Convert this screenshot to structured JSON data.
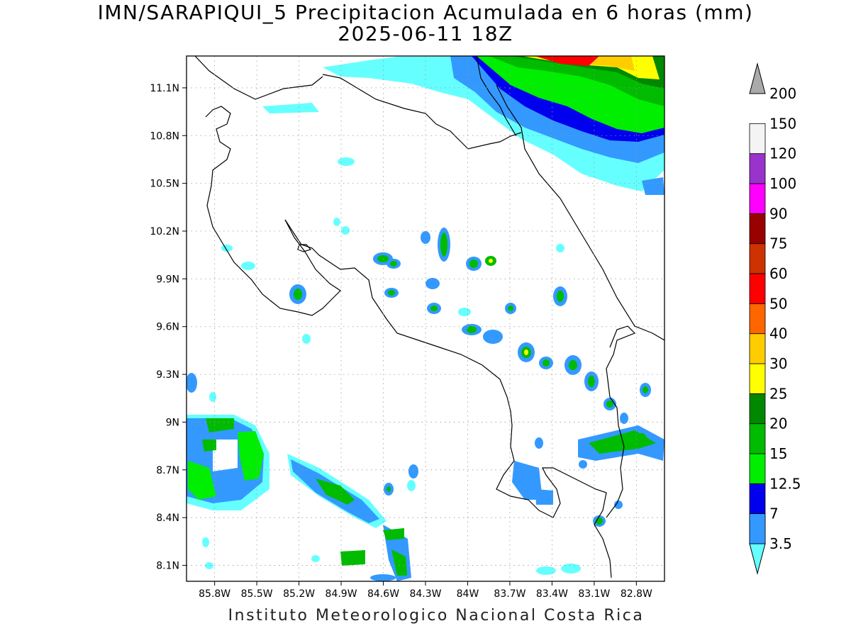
{
  "title_line1": "IMN/SARAPIQUI_5 Precipitacion Acumulada en 6 horas (mm)",
  "title_line2": "2025-06-11 18Z",
  "footer": "Instituto Meteorologico Nacional Costa Rica",
  "map": {
    "lon_range": [
      -86.0,
      -82.6
    ],
    "lat_range": [
      8.0,
      11.3
    ],
    "lat_ticks": [
      {
        "value": 8.1,
        "label": "8.1N"
      },
      {
        "value": 8.4,
        "label": "8.4N"
      },
      {
        "value": 8.7,
        "label": "8.7N"
      },
      {
        "value": 9.0,
        "label": "9N"
      },
      {
        "value": 9.3,
        "label": "9.3N"
      },
      {
        "value": 9.6,
        "label": "9.6N"
      },
      {
        "value": 9.9,
        "label": "9.9N"
      },
      {
        "value": 10.2,
        "label": "10.2N"
      },
      {
        "value": 10.5,
        "label": "10.5N"
      },
      {
        "value": 10.8,
        "label": "10.8N"
      },
      {
        "value": 11.1,
        "label": "11.1N"
      }
    ],
    "lon_ticks": [
      {
        "value": -85.8,
        "label": "85.8W"
      },
      {
        "value": -85.5,
        "label": "85.5W"
      },
      {
        "value": -85.2,
        "label": "85.2W"
      },
      {
        "value": -84.9,
        "label": "84.9W"
      },
      {
        "value": -84.6,
        "label": "84.6W"
      },
      {
        "value": -84.3,
        "label": "84.3W"
      },
      {
        "value": -84.0,
        "label": "84W"
      },
      {
        "value": -83.7,
        "label": "83.7W"
      },
      {
        "value": -83.4,
        "label": "83.4W"
      },
      {
        "value": -83.1,
        "label": "83.1W"
      },
      {
        "value": -82.8,
        "label": "82.8W"
      }
    ],
    "gridlines": true
  },
  "legend": {
    "units": "mm",
    "bins": [
      {
        "label": "3.5",
        "color": "#66ffff"
      },
      {
        "label": "7",
        "color": "#3399ff"
      },
      {
        "label": "12.5",
        "color": "#0000ee"
      },
      {
        "label": "15",
        "color": "#00ee00"
      },
      {
        "label": "20",
        "color": "#00bb00"
      },
      {
        "label": "25",
        "color": "#008800"
      },
      {
        "label": "30",
        "color": "#ffff00"
      },
      {
        "label": "40",
        "color": "#ffcc00"
      },
      {
        "label": "50",
        "color": "#ff6600"
      },
      {
        "label": "60",
        "color": "#ff0000"
      },
      {
        "label": "75",
        "color": "#cc3300"
      },
      {
        "label": "90",
        "color": "#990000"
      },
      {
        "label": "100",
        "color": "#ff00ff"
      },
      {
        "label": "120",
        "color": "#9933cc"
      },
      {
        "label": "150",
        "color": "#f4f4f4"
      },
      {
        "label": "200",
        "color": "#aaaaaa"
      }
    ]
  },
  "precip_cells": [
    {
      "lon": -84.55,
      "lat": 8.13,
      "level": 5
    },
    {
      "lon": -84.85,
      "lat": 8.14,
      "level": 4
    },
    {
      "lon": -85.55,
      "lat": 8.86,
      "level": 8
    },
    {
      "lon": -85.9,
      "lat": 8.63,
      "level": 7
    },
    {
      "lon": -84.88,
      "lat": 8.57,
      "level": 7
    },
    {
      "lon": -84.6,
      "lat": 8.41,
      "level": 7
    },
    {
      "lon": -84.5,
      "lat": 8.33,
      "level": 4
    },
    {
      "lon": -85.15,
      "lat": 8.72,
      "level": 4
    },
    {
      "lon": -83.5,
      "lat": 8.62,
      "level": 6
    },
    {
      "lon": -83.4,
      "lat": 8.5,
      "level": 4
    },
    {
      "lon": -83.49,
      "lat": 9.43,
      "level": 6
    },
    {
      "lon": -83.4,
      "lat": 9.38,
      "level": 4
    },
    {
      "lon": -83.15,
      "lat": 9.33,
      "level": 4
    },
    {
      "lon": -82.98,
      "lat": 9.11,
      "level": 4
    },
    {
      "lon": -82.83,
      "lat": 8.88,
      "level": 5
    },
    {
      "lon": -82.62,
      "lat": 8.82,
      "level": 7
    },
    {
      "lon": -82.97,
      "lat": 8.79,
      "level": 4
    },
    {
      "lon": -83.95,
      "lat": 10.08,
      "level": 5
    },
    {
      "lon": -83.75,
      "lat": 10.01,
      "level": 6
    },
    {
      "lon": -84.42,
      "lat": 10.02,
      "level": 4
    },
    {
      "lon": -85.28,
      "lat": 9.81,
      "level": 4
    },
    {
      "lon": -83.28,
      "lat": 9.79,
      "level": 5
    },
    {
      "lon": -84.0,
      "lat": 9.6,
      "level": 4
    }
  ]
}
